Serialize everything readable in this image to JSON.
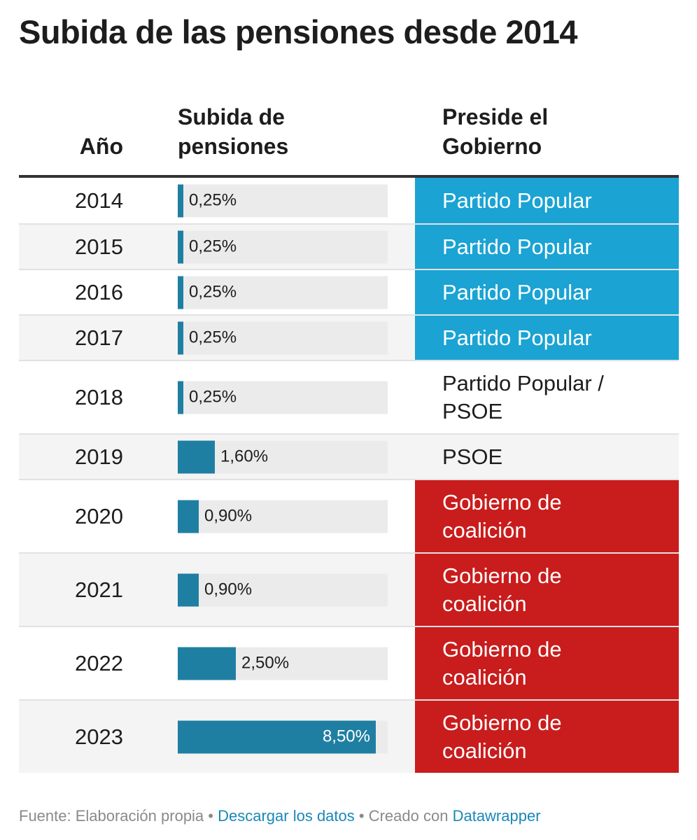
{
  "title": "Subida de las pensiones desde 2014",
  "columns": {
    "year": "Año",
    "raise": "Subida de pensiones",
    "government": "Preside el Gobierno"
  },
  "colors": {
    "bar": "#1f7fa2",
    "track": "#ebebeb",
    "partido_popular": "#1aa3d3",
    "coalicion": "#c91c1c"
  },
  "chart_data": {
    "type": "table",
    "title": "Subida de las pensiones desde 2014",
    "columns": [
      "Año",
      "Subida de pensiones",
      "Preside el Gobierno"
    ],
    "bar_max": 9,
    "rows": [
      {
        "year": "2014",
        "value": 0.25,
        "label": "0,25%",
        "government": "Partido Popular",
        "party": "pp"
      },
      {
        "year": "2015",
        "value": 0.25,
        "label": "0,25%",
        "government": "Partido Popular",
        "party": "pp"
      },
      {
        "year": "2016",
        "value": 0.25,
        "label": "0,25%",
        "government": "Partido Popular",
        "party": "pp"
      },
      {
        "year": "2017",
        "value": 0.25,
        "label": "0,25%",
        "government": "Partido Popular",
        "party": "pp"
      },
      {
        "year": "2018",
        "value": 0.25,
        "label": "0,25%",
        "government": "Partido Popular / PSOE",
        "party": "plain"
      },
      {
        "year": "2019",
        "value": 1.6,
        "label": "1,60%",
        "government": "PSOE",
        "party": "plain"
      },
      {
        "year": "2020",
        "value": 0.9,
        "label": "0,90%",
        "government": "Gobierno de coalición",
        "party": "coal"
      },
      {
        "year": "2021",
        "value": 0.9,
        "label": "0,90%",
        "government": "Gobierno de coalición",
        "party": "coal"
      },
      {
        "year": "2022",
        "value": 2.5,
        "label": "2,50%",
        "government": "Gobierno de coalición",
        "party": "coal"
      },
      {
        "year": "2023",
        "value": 8.5,
        "label": "8,50%",
        "government": "Gobierno de coalición",
        "party": "coal"
      }
    ]
  },
  "footer": {
    "source": "Fuente: Elaboración propia",
    "separator": " • ",
    "download": "Descargar los datos",
    "created_with": "Creado con",
    "tool": "Datawrapper"
  }
}
